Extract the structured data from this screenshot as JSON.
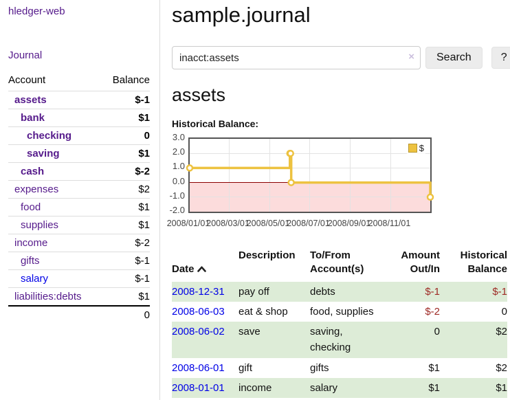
{
  "app": {
    "brand": "hledger-web",
    "nav_journal_label": "Journal"
  },
  "sidebar": {
    "table": {
      "headers": {
        "account": "Account",
        "balance": "Balance"
      },
      "rows": [
        {
          "name": "assets",
          "balance": "$-1"
        },
        {
          "name": "bank",
          "balance": "$1"
        },
        {
          "name": "checking",
          "balance": "0"
        },
        {
          "name": "saving",
          "balance": "$1"
        },
        {
          "name": "cash",
          "balance": "$-2"
        },
        {
          "name": "expenses",
          "balance": "$2"
        },
        {
          "name": "food",
          "balance": "$1"
        },
        {
          "name": "supplies",
          "balance": "$1"
        },
        {
          "name": "income",
          "balance": "$-2"
        },
        {
          "name": "gifts",
          "balance": "$-1"
        },
        {
          "name": "salary",
          "balance": "$-1"
        },
        {
          "name": "liabilities:debts",
          "balance": "$1"
        }
      ],
      "total": "0"
    }
  },
  "main": {
    "title": "sample.journal",
    "search": {
      "value": "inacct:assets",
      "clear_icon": "×",
      "submit_label": "Search",
      "help_label": "?"
    },
    "account_heading": "assets",
    "section_label": "Historical Balance:"
  },
  "chart_data": {
    "type": "line",
    "steps": true,
    "title": "Historical Balance",
    "series": [
      {
        "name": "$",
        "color": "#edc240",
        "points": [
          [
            "2008-01-01",
            1
          ],
          [
            "2008-06-01",
            2
          ],
          [
            "2008-06-02",
            2
          ],
          [
            "2008-06-03",
            0
          ],
          [
            "2008-12-31",
            -1
          ]
        ]
      }
    ],
    "xrange": [
      "2008-01-01",
      "2008-12-31"
    ],
    "ylim": [
      -2,
      3
    ],
    "y_ticks": [
      "3.0",
      "2.0",
      "1.0",
      "0.0",
      "-1.0",
      "-2.0"
    ],
    "x_ticks": [
      "2008/01/01",
      "2008/03/01",
      "2008/05/01",
      "2008/07/01",
      "2008/09/01",
      "2008/11/01"
    ],
    "legend": {
      "label": "$",
      "position": "top-right"
    },
    "grid": true,
    "negative_region_color": "#fcdcdc",
    "zero_line_color": "#8b0000"
  },
  "register": {
    "headers": {
      "date": "Date",
      "description": "Description",
      "accounts": "To/From\nAccount(s)",
      "amount": "Amount\nOut/In",
      "balance": "Historical\nBalance"
    },
    "rows": [
      {
        "date": "2008-12-31",
        "description": "pay off",
        "accounts": "debts",
        "amount": "$-1",
        "balance": "$-1"
      },
      {
        "date": "2008-06-03",
        "description": "eat & shop",
        "accounts": "food, supplies",
        "amount": "$-2",
        "balance": "0"
      },
      {
        "date": "2008-06-02",
        "description": "save",
        "accounts": "saving, checking",
        "amount": "0",
        "balance": "$2"
      },
      {
        "date": "2008-06-01",
        "description": "gift",
        "accounts": "gifts",
        "amount": "$1",
        "balance": "$2"
      },
      {
        "date": "2008-01-01",
        "description": "income",
        "accounts": "salary",
        "amount": "$1",
        "balance": "$1"
      }
    ]
  }
}
